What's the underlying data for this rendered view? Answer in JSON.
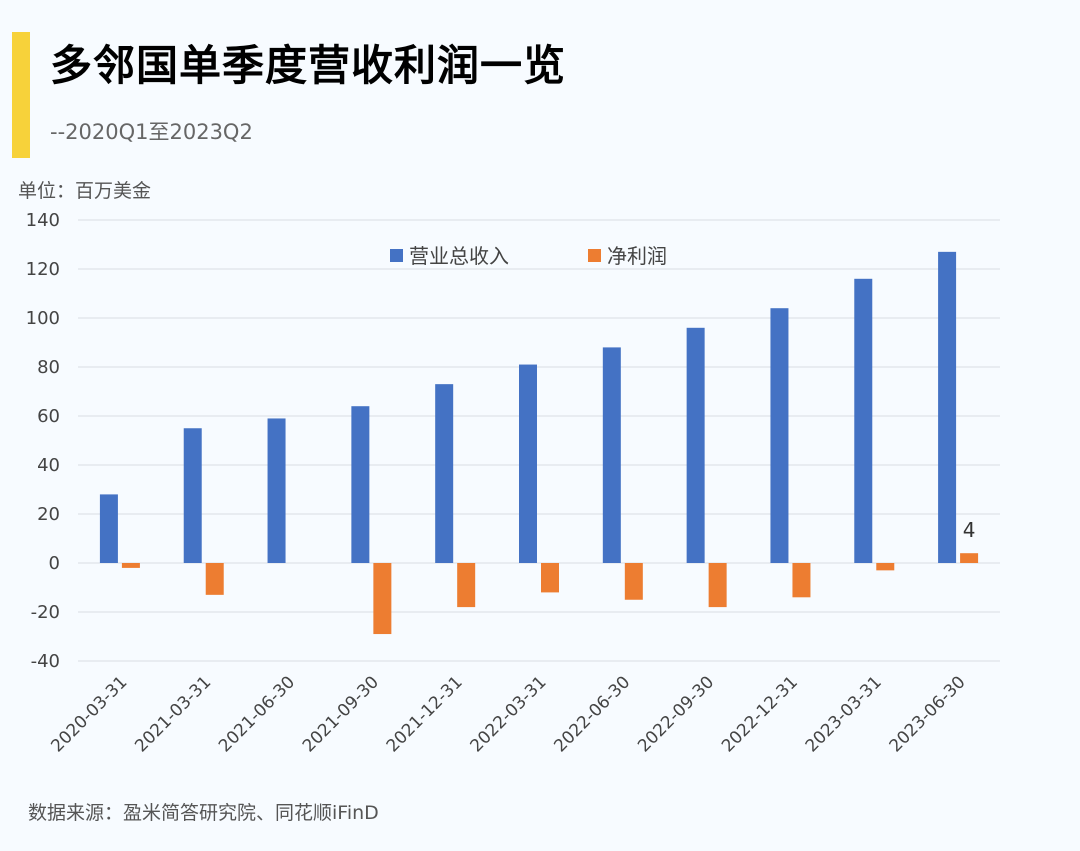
{
  "header": {
    "title": "多邻国单季度营收利润一览",
    "subtitle": "--2020Q1至2023Q2",
    "unit": "单位：百万美金"
  },
  "footer": {
    "source": "数据来源：盈米简答研究院、同花顺iFinD"
  },
  "colors": {
    "accent": "#f7d23a",
    "revenue": "#4472c4",
    "profit": "#ed7d31",
    "grid": "#d9dde3"
  },
  "chart_data": {
    "type": "bar",
    "categories": [
      "2020-03-31",
      "2021-03-31",
      "2021-06-30",
      "2021-09-30",
      "2021-12-31",
      "2022-03-31",
      "2022-06-30",
      "2022-09-30",
      "2022-12-31",
      "2023-03-31",
      "2023-06-30"
    ],
    "series": [
      {
        "name": "营业总收入",
        "values": [
          28,
          55,
          59,
          64,
          73,
          81,
          88,
          96,
          104,
          116,
          127
        ]
      },
      {
        "name": "净利润",
        "values": [
          -2,
          -13,
          0,
          -29,
          -18,
          -12,
          -15,
          -18,
          -14,
          -3,
          4
        ]
      }
    ],
    "data_labels": [
      {
        "series": 1,
        "index": 10,
        "text": "4"
      }
    ],
    "ylim": [
      -40,
      140
    ],
    "yticks": [
      -40,
      -20,
      0,
      20,
      40,
      60,
      80,
      100,
      120,
      140
    ],
    "grid": true,
    "legend_position": "top-center"
  }
}
